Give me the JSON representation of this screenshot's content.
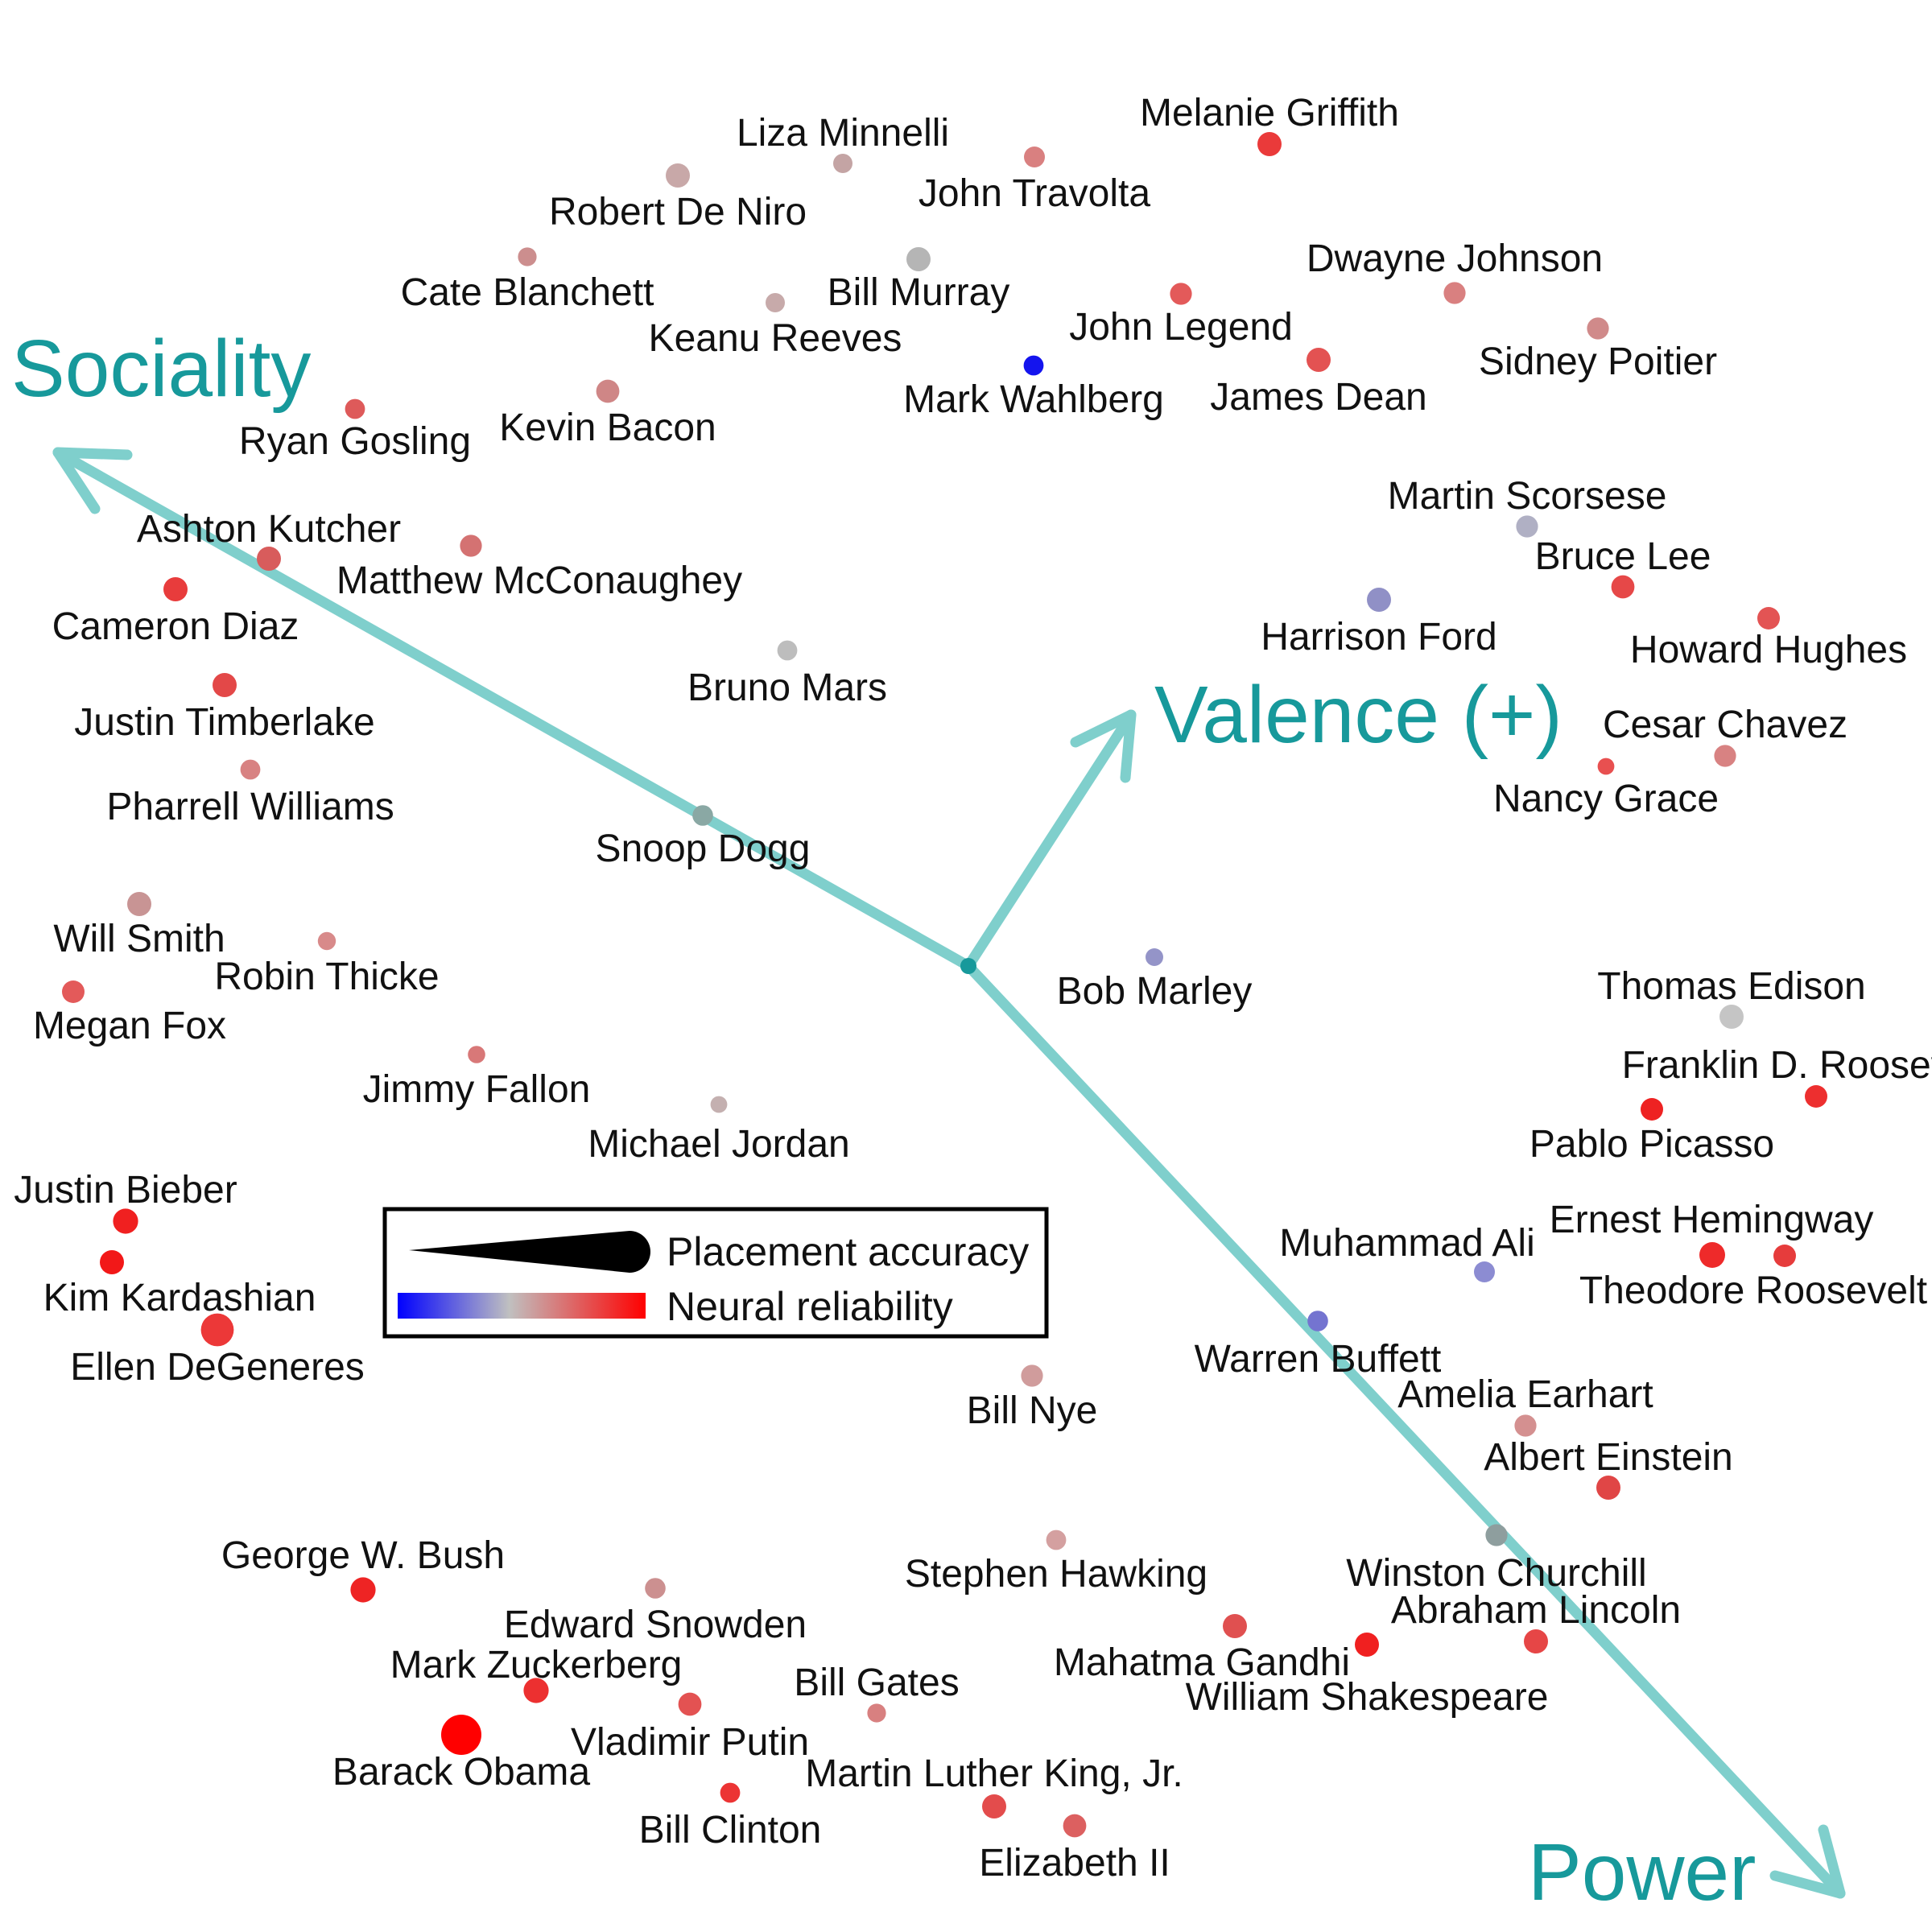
{
  "chart_data": {
    "type": "scatter",
    "title": "",
    "axes": [
      {
        "name": "Sociality",
        "color": "#17999b"
      },
      {
        "name": "Valence (+)",
        "color": "#17999b"
      },
      {
        "name": "Power",
        "color": "#17999b"
      }
    ],
    "arrow_color": "#7fcfcc",
    "legend": {
      "size_label": "Placement accuracy",
      "color_label": "Neural reliability",
      "color_low": "#0000ff",
      "color_mid": "#c0c0c0",
      "color_high": "#ff0000"
    },
    "grid": false,
    "points": [
      {
        "name": "Melanie Griffith",
        "color": "#ea3a3a",
        "size": 0.45
      },
      {
        "name": "Liza Minnelli",
        "color": "#c4a4a4",
        "size": 0.3
      },
      {
        "name": "John Travolta",
        "color": "#d98080",
        "size": 0.35
      },
      {
        "name": "Robert De Niro",
        "color": "#c8a8a8",
        "size": 0.45
      },
      {
        "name": "Dwayne Johnson",
        "color": "#d98080",
        "size": 0.38
      },
      {
        "name": "Bill Murray",
        "color": "#b5b5b5",
        "size": 0.45
      },
      {
        "name": "Cate Blanchett",
        "color": "#cc8e8e",
        "size": 0.28
      },
      {
        "name": "John Legend",
        "color": "#e35a5a",
        "size": 0.38
      },
      {
        "name": "Sidney Poitier",
        "color": "#d08a8a",
        "size": 0.38
      },
      {
        "name": "Keanu Reeves",
        "color": "#c7aaaa",
        "size": 0.3
      },
      {
        "name": "Mark Wahlberg",
        "color": "#1414ee",
        "size": 0.32
      },
      {
        "name": "James Dean",
        "color": "#e35252",
        "size": 0.45
      },
      {
        "name": "Ryan Gosling",
        "color": "#de5a5a",
        "size": 0.32
      },
      {
        "name": "Kevin Bacon",
        "color": "#cf8686",
        "size": 0.42
      },
      {
        "name": "Martin Scorsese",
        "color": "#b0b0c4",
        "size": 0.38
      },
      {
        "name": "Bruce Lee",
        "color": "#e64848",
        "size": 0.42
      },
      {
        "name": "Ashton Kutcher",
        "color": "#d85c5c",
        "size": 0.45
      },
      {
        "name": "Matthew McConaughey",
        "color": "#d47272",
        "size": 0.38
      },
      {
        "name": "Harrison Ford",
        "color": "#9090c6",
        "size": 0.45
      },
      {
        "name": "Howard Hughes",
        "color": "#e35454",
        "size": 0.4
      },
      {
        "name": "Cameron Diaz",
        "color": "#e83c3c",
        "size": 0.45
      },
      {
        "name": "Bruno Mars",
        "color": "#bdbdbd",
        "size": 0.32
      },
      {
        "name": "Justin Timberlake",
        "color": "#e34848",
        "size": 0.45
      },
      {
        "name": "Cesar Chavez",
        "color": "#d88282",
        "size": 0.38
      },
      {
        "name": "Nancy Grace",
        "color": "#e85050",
        "size": 0.22
      },
      {
        "name": "Pharrell Williams",
        "color": "#d88282",
        "size": 0.32
      },
      {
        "name": "Snoop Dogg",
        "color": "#8aa8a4",
        "size": 0.34
      },
      {
        "name": "Will Smith",
        "color": "#c89494",
        "size": 0.45
      },
      {
        "name": "Bob Marley",
        "color": "#9494c8",
        "size": 0.25
      },
      {
        "name": "Robin Thicke",
        "color": "#d88a8a",
        "size": 0.26
      },
      {
        "name": "Thomas Edison",
        "color": "#c5c5c5",
        "size": 0.45
      },
      {
        "name": "Megan Fox",
        "color": "#e35a5a",
        "size": 0.4
      },
      {
        "name": "Franklin D. Roosevelt",
        "color": "#ed2f2f",
        "size": 0.4
      },
      {
        "name": "Jimmy Fallon",
        "color": "#d87878",
        "size": 0.24
      },
      {
        "name": "Pablo Picasso",
        "color": "#ee2222",
        "size": 0.4
      },
      {
        "name": "Michael Jordan",
        "color": "#c4b0b0",
        "size": 0.22
      },
      {
        "name": "Justin Bieber",
        "color": "#f02020",
        "size": 0.48
      },
      {
        "name": "Ernest Hemingway",
        "color": "#ee2a2a",
        "size": 0.5
      },
      {
        "name": "Muhammad Ali",
        "color": "#8c8cd2",
        "size": 0.35
      },
      {
        "name": "Theodore Roosevelt",
        "color": "#e63c3c",
        "size": 0.4
      },
      {
        "name": "Kim Kardashian",
        "color": "#f21818",
        "size": 0.45
      },
      {
        "name": "Warren Buffett",
        "color": "#7474d0",
        "size": 0.34
      },
      {
        "name": "Ellen DeGeneres",
        "color": "#ec3838",
        "size": 0.72
      },
      {
        "name": "Bill Nye",
        "color": "#d09c9c",
        "size": 0.38
      },
      {
        "name": "Amelia Earhart",
        "color": "#d49090",
        "size": 0.38
      },
      {
        "name": "Albert Einstein",
        "color": "#e04646",
        "size": 0.45
      },
      {
        "name": "George W. Bush",
        "color": "#ee2424",
        "size": 0.48
      },
      {
        "name": "Stephen Hawking",
        "color": "#d4a0a0",
        "size": 0.32
      },
      {
        "name": "Winston Churchill",
        "color": "#8e9e9e",
        "size": 0.38
      },
      {
        "name": "Edward Snowden",
        "color": "#cc9090",
        "size": 0.34
      },
      {
        "name": "Abraham Lincoln",
        "color": "#e64646",
        "size": 0.45
      },
      {
        "name": "Mahatma Gandhi",
        "color": "#e05050",
        "size": 0.45
      },
      {
        "name": "Mark Zuckerberg",
        "color": "#ec3030",
        "size": 0.48
      },
      {
        "name": "William Shakespeare",
        "color": "#f02020",
        "size": 0.45
      },
      {
        "name": "Bill Gates",
        "color": "#d88080",
        "size": 0.28
      },
      {
        "name": "Vladimir Putin",
        "color": "#e35252",
        "size": 0.42
      },
      {
        "name": "Barack Obama",
        "color": "#ff0000",
        "size": 0.95
      },
      {
        "name": "Martin Luther King, Jr.",
        "color": "#e34c4c",
        "size": 0.45
      },
      {
        "name": "Bill Clinton",
        "color": "#ec3434",
        "size": 0.32
      },
      {
        "name": "Elizabeth II",
        "color": "#dc6060",
        "size": 0.42
      }
    ]
  }
}
